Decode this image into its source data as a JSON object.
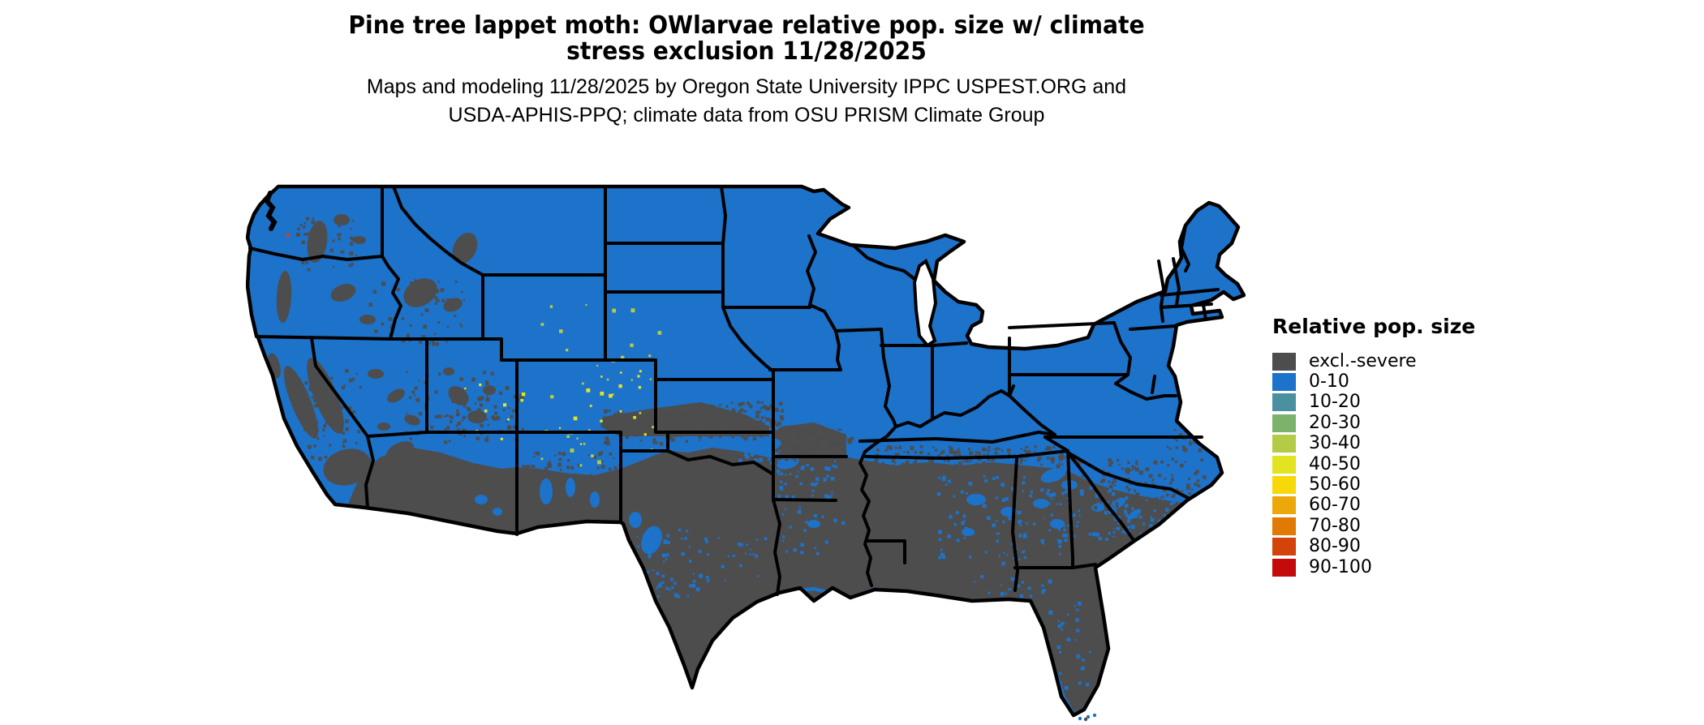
{
  "title": {
    "lines": [
      "Pine tree lappet moth: OWlarvae relative pop. size w/ climate",
      "stress exclusion 11/28/2025"
    ]
  },
  "subtitle": {
    "lines": [
      "Maps and modeling 11/28/2025 by Oregon State University IPPC USPEST.ORG and",
      "USDA-APHIS-PPQ; climate data from OSU PRISM Climate Group"
    ]
  },
  "legend": {
    "title": "Relative pop. size",
    "entries": [
      {
        "label": "excl.-severe",
        "color": "#4d4d4d"
      },
      {
        "label": "0-10",
        "color": "#1d72c9"
      },
      {
        "label": "10-20",
        "color": "#4b90a1"
      },
      {
        "label": "20-30",
        "color": "#7bb26c"
      },
      {
        "label": "30-40",
        "color": "#b4cc45"
      },
      {
        "label": "40-50",
        "color": "#e2e41f"
      },
      {
        "label": "50-60",
        "color": "#f7d808"
      },
      {
        "label": "60-70",
        "color": "#eca80a"
      },
      {
        "label": "70-80",
        "color": "#e07a02"
      },
      {
        "label": "80-90",
        "color": "#d4430a"
      },
      {
        "label": "90-100",
        "color": "#c40a0a"
      }
    ]
  },
  "map": {
    "region": "Conterminous United States",
    "boundary_color": "#000000",
    "water_color": "#ffffff",
    "background": "#ffffff",
    "dominant_classes": {
      "north": "0-10",
      "south_and_deserts": "excl.-severe"
    }
  }
}
